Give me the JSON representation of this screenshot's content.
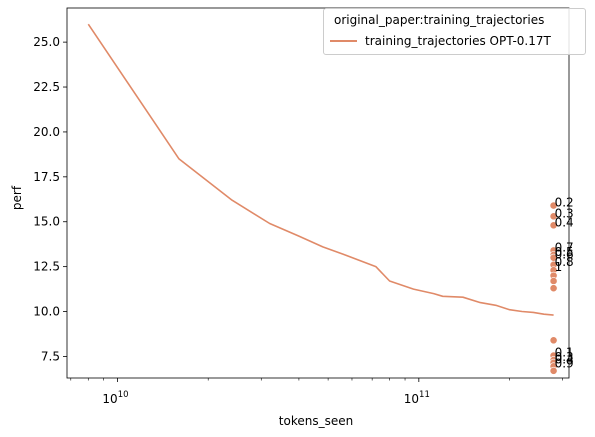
{
  "chart_data": {
    "type": "line",
    "title": "",
    "xlabel": "tokens_seen",
    "ylabel": "perf",
    "xscale": "log",
    "xlim": [
      6800000000.0,
      315000000000.0
    ],
    "ylim": [
      6.3,
      26.9
    ],
    "x_tick_labels": [
      {
        "value": 10000000000.0,
        "base": "10",
        "exp": "10"
      },
      {
        "value": 100000000000.0,
        "base": "10",
        "exp": "11"
      }
    ],
    "y_ticks": [
      7.5,
      10.0,
      12.5,
      15.0,
      17.5,
      20.0,
      22.5,
      25.0
    ],
    "y_tick_labels": [
      "7.5",
      "10.0",
      "12.5",
      "15.0",
      "17.5",
      "20.0",
      "22.5",
      "25.0"
    ],
    "grid": false,
    "legend": {
      "title": "original_paper:training_trajectories",
      "location": "top-right",
      "entries": [
        {
          "label": "training_trajectories OPT-0.17T",
          "color": "#e08a68"
        }
      ]
    },
    "series": [
      {
        "name": "training_trajectories OPT-0.17T",
        "color": "#e08a68",
        "x": [
          8000000000.0,
          16000000000.0,
          24000000000.0,
          32000000000.0,
          40000000000.0,
          48000000000.0,
          56000000000.0,
          72000000000.0,
          80000000000.0,
          96000000000.0,
          112000000000.0,
          120000000000.0,
          140000000000.0,
          160000000000.0,
          180000000000.0,
          200000000000.0,
          220000000000.0,
          240000000000.0,
          260000000000.0,
          280000000000.0
        ],
        "y": [
          26.0,
          18.5,
          16.2,
          14.9,
          14.2,
          13.6,
          13.2,
          12.5,
          11.7,
          11.25,
          11.0,
          10.85,
          10.8,
          10.5,
          10.35,
          10.1,
          10.0,
          9.95,
          9.85,
          9.8
        ]
      }
    ],
    "scatter_points": {
      "color": "#e08a68",
      "x": 280000000000.0,
      "points": [
        {
          "y": 15.9,
          "label": "0.2"
        },
        {
          "y": 15.3,
          "label": "0.3"
        },
        {
          "y": 14.8,
          "label": "0.4"
        },
        {
          "y": 13.4,
          "label": "0.7"
        },
        {
          "y": 13.15,
          "label": "0.5"
        },
        {
          "y": 13.0,
          "label": "0.6"
        },
        {
          "y": 12.6,
          "label": "0.8"
        },
        {
          "y": 12.3,
          "label": "1"
        },
        {
          "y": 12.0,
          "label": ""
        },
        {
          "y": 11.7,
          "label": ""
        },
        {
          "y": 11.3,
          "label": ""
        },
        {
          "y": 8.4,
          "label": ""
        },
        {
          "y": 7.55,
          "label": "0.1"
        },
        {
          "y": 7.3,
          "label": "0.3"
        },
        {
          "y": 7.15,
          "label": "0.4"
        },
        {
          "y": 6.95,
          "label": "0.9"
        },
        {
          "y": 6.7,
          "label": ""
        }
      ]
    }
  }
}
